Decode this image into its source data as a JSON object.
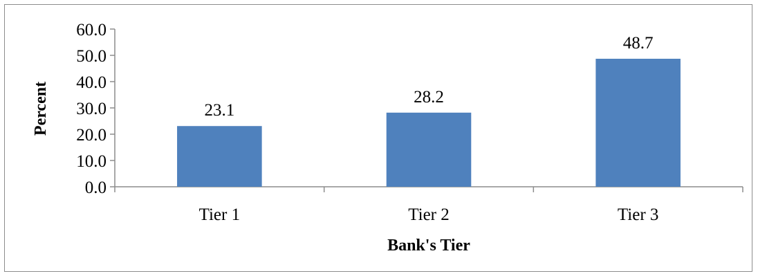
{
  "chart_data": {
    "type": "bar",
    "categories": [
      "Tier 1",
      "Tier 2",
      "Tier 3"
    ],
    "values": [
      23.1,
      28.2,
      48.7
    ],
    "data_labels": [
      "23.1",
      "28.2",
      "48.7"
    ],
    "title": "",
    "xlabel": "Bank's Tier",
    "ylabel": "Percent",
    "ylim": [
      0,
      60
    ],
    "yticks": [
      "0.0",
      "10.0",
      "20.0",
      "30.0",
      "40.0",
      "50.0",
      "60.0"
    ],
    "grid": false,
    "legend": "none",
    "bar_color": "#4F81BD"
  }
}
